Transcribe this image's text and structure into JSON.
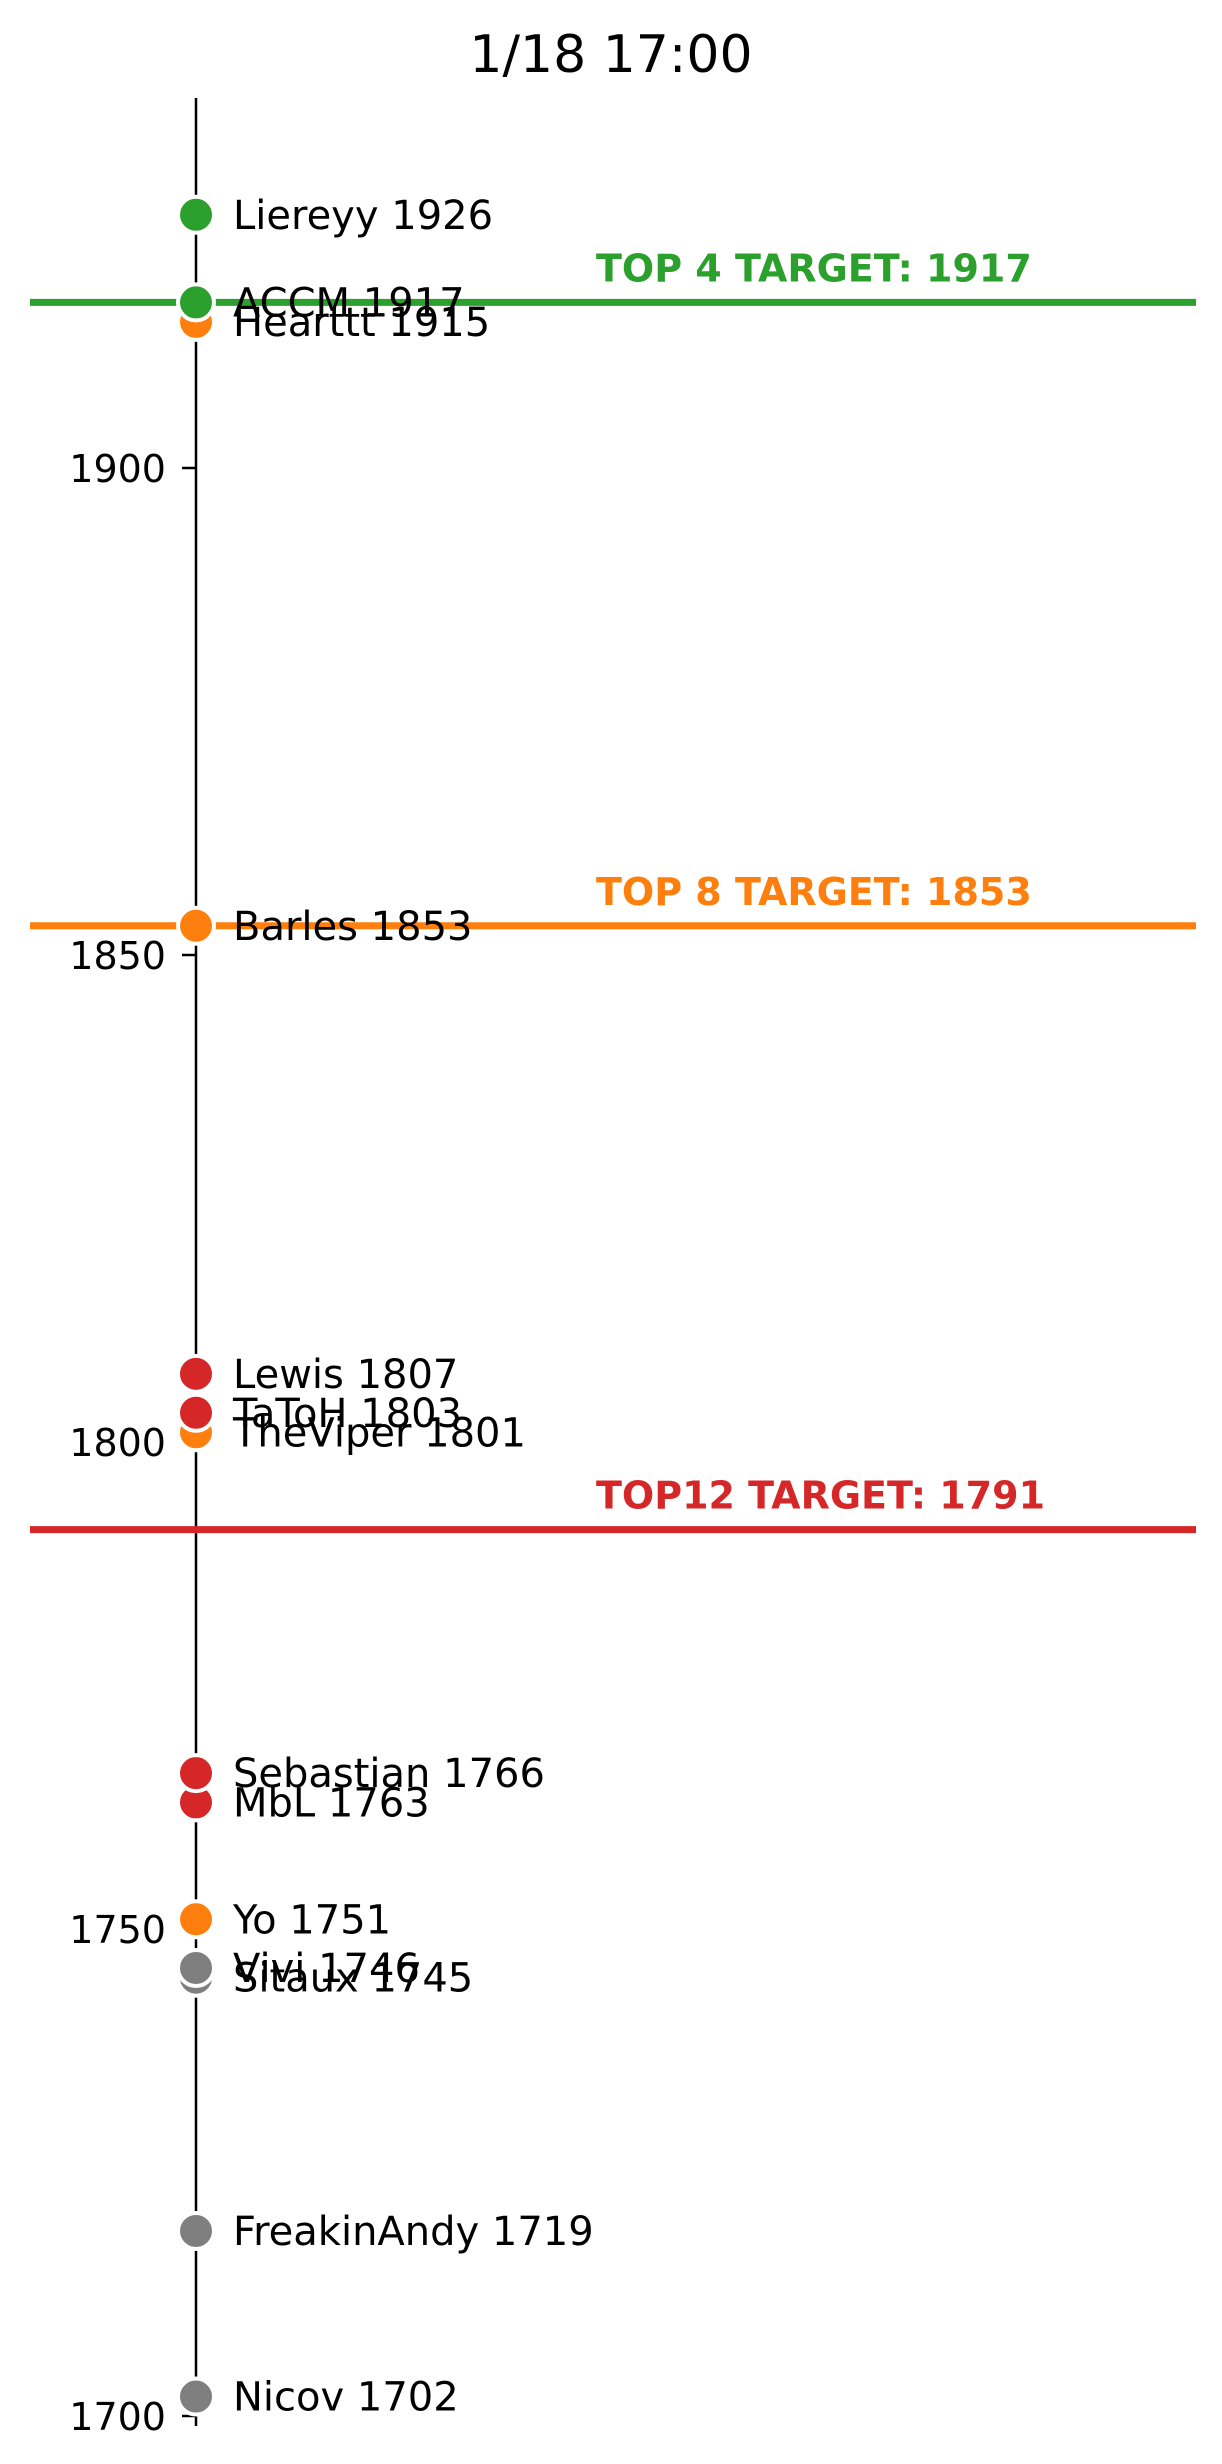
{
  "chart_data": {
    "type": "scatter",
    "title": "1/18 17:00",
    "xlabel": "",
    "ylabel": "",
    "ylim": [
      1700,
      1938
    ],
    "yticks": [
      1700,
      1750,
      1800,
      1850,
      1900
    ],
    "grid": false,
    "colors": {
      "green": "#2ca02c",
      "orange": "#ff7f0e",
      "red": "#d62728",
      "gray": "#7f7f7f"
    },
    "points": [
      {
        "name": "Liereyy",
        "value": 1926,
        "label": "Liereyy 1926",
        "color": "green"
      },
      {
        "name": "ACCM",
        "value": 1917,
        "label": "ACCM 1917",
        "color": "green"
      },
      {
        "name": "Hearttt",
        "value": 1915,
        "label": "Hearttt 1915",
        "color": "orange"
      },
      {
        "name": "Barles",
        "value": 1853,
        "label": "Barles 1853",
        "color": "orange"
      },
      {
        "name": "Lewis",
        "value": 1807,
        "label": "Lewis 1807",
        "color": "red"
      },
      {
        "name": "TaToH",
        "value": 1803,
        "label": "TaToH 1803",
        "color": "red"
      },
      {
        "name": "TheViper",
        "value": 1801,
        "label": "TheViper 1801",
        "color": "orange"
      },
      {
        "name": "Sebastian",
        "value": 1766,
        "label": "Sebastian 1766",
        "color": "red"
      },
      {
        "name": "MbL",
        "value": 1763,
        "label": "MbL 1763",
        "color": "red"
      },
      {
        "name": "Yo",
        "value": 1751,
        "label": "Yo 1751",
        "color": "orange"
      },
      {
        "name": "Vivi",
        "value": 1746,
        "label": "Vivi 1746",
        "color": "gray"
      },
      {
        "name": "Sitaux",
        "value": 1745,
        "label": "Sitaux 1745",
        "color": "gray"
      },
      {
        "name": "FreakinAndy",
        "value": 1719,
        "label": "FreakinAndy 1719",
        "color": "gray"
      },
      {
        "name": "Nicov",
        "value": 1702,
        "label": "Nicov 1702",
        "color": "gray"
      }
    ],
    "targets": [
      {
        "value": 1917,
        "label": "TOP 4 TARGET: 1917",
        "color": "green"
      },
      {
        "value": 1853,
        "label": "TOP 8 TARGET: 1853",
        "color": "orange"
      },
      {
        "value": 1791,
        "label": "TOP12 TARGET: 1791",
        "color": "red"
      }
    ]
  }
}
